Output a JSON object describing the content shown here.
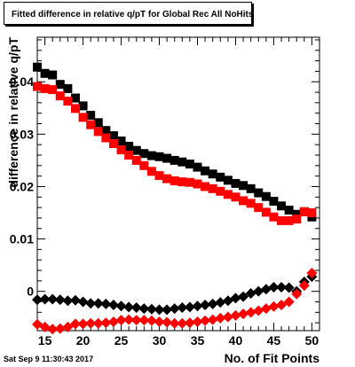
{
  "page": {
    "title": "Fitted difference in relative q/pT for Global Rec All NoHits",
    "timestamp": "Sat Sep  9 11:30:43 2017"
  },
  "chart_data": {
    "type": "scatter",
    "xlabel": "No. of Fit Points",
    "ylabel": "difference in relative q/pT",
    "xlim": [
      14,
      51
    ],
    "ylim": [
      -0.0075,
      0.0485
    ],
    "x_ticks": [
      15,
      20,
      25,
      30,
      35,
      40,
      45,
      50
    ],
    "x_tick_labels": [
      "15",
      "20",
      "25",
      "30",
      "35",
      "40",
      "45",
      "50"
    ],
    "y_ticks": [
      0,
      0.01,
      0.02,
      0.03,
      0.04
    ],
    "y_tick_labels": [
      "0",
      "0.01",
      "0.02",
      "0.03",
      "0.04"
    ],
    "x": [
      14,
      15,
      16,
      17,
      18,
      19,
      20,
      21,
      22,
      23,
      24,
      25,
      26,
      27,
      28,
      29,
      30,
      31,
      32,
      33,
      34,
      35,
      36,
      37,
      38,
      39,
      40,
      41,
      42,
      43,
      44,
      45,
      46,
      47,
      48,
      49,
      50
    ],
    "series": [
      {
        "marker": "square",
        "color": "#000000",
        "values": [
          0.0428,
          0.0416,
          0.0413,
          0.0395,
          0.0387,
          0.0369,
          0.0354,
          0.0336,
          0.0322,
          0.0307,
          0.0297,
          0.0287,
          0.0277,
          0.0269,
          0.0263,
          0.0259,
          0.0257,
          0.0254,
          0.025,
          0.0247,
          0.0243,
          0.0237,
          0.023,
          0.0224,
          0.0218,
          0.0212,
          0.0206,
          0.0202,
          0.0196,
          0.0188,
          0.0181,
          0.0172,
          0.0163,
          0.0155,
          0.0147,
          0.0152,
          0.0142
        ]
      },
      {
        "marker": "square",
        "color": "#ff0000",
        "values": [
          0.0391,
          0.0387,
          0.0385,
          0.0373,
          0.0363,
          0.0349,
          0.0332,
          0.0318,
          0.0305,
          0.0293,
          0.0282,
          0.027,
          0.026,
          0.025,
          0.024,
          0.0229,
          0.0221,
          0.0215,
          0.0211,
          0.0209,
          0.0208,
          0.0205,
          0.02,
          0.0196,
          0.0191,
          0.0185,
          0.018,
          0.0173,
          0.0168,
          0.016,
          0.0151,
          0.0142,
          0.0135,
          0.0135,
          0.0138,
          0.0152,
          0.015
        ]
      },
      {
        "marker": "diamond",
        "color": "#000000",
        "values": [
          -0.0016,
          -0.0015,
          -0.0015,
          -0.0016,
          -0.0018,
          -0.0017,
          -0.002,
          -0.0023,
          -0.0023,
          -0.0024,
          -0.0026,
          -0.0028,
          -0.003,
          -0.0031,
          -0.0033,
          -0.0034,
          -0.0035,
          -0.0035,
          -0.0033,
          -0.0031,
          -0.003,
          -0.0028,
          -0.0026,
          -0.0024,
          -0.0021,
          -0.0018,
          -0.0013,
          -0.001,
          -0.0004,
          0.0,
          0.0004,
          0.0008,
          0.0008,
          0.0007,
          0.0,
          0.0018,
          0.0028
        ]
      },
      {
        "marker": "diamond",
        "color": "#ff0000",
        "values": [
          -0.0063,
          -0.0068,
          -0.0072,
          -0.0071,
          -0.0068,
          -0.0062,
          -0.0062,
          -0.0061,
          -0.0061,
          -0.006,
          -0.0058,
          -0.0055,
          -0.0054,
          -0.0055,
          -0.0055,
          -0.0056,
          -0.0058,
          -0.0059,
          -0.0061,
          -0.0061,
          -0.006,
          -0.0058,
          -0.0056,
          -0.0054,
          -0.0051,
          -0.0049,
          -0.0046,
          -0.0043,
          -0.004,
          -0.0037,
          -0.0033,
          -0.0029,
          -0.0026,
          -0.002,
          -0.0005,
          0.0011,
          0.0035
        ]
      }
    ]
  }
}
